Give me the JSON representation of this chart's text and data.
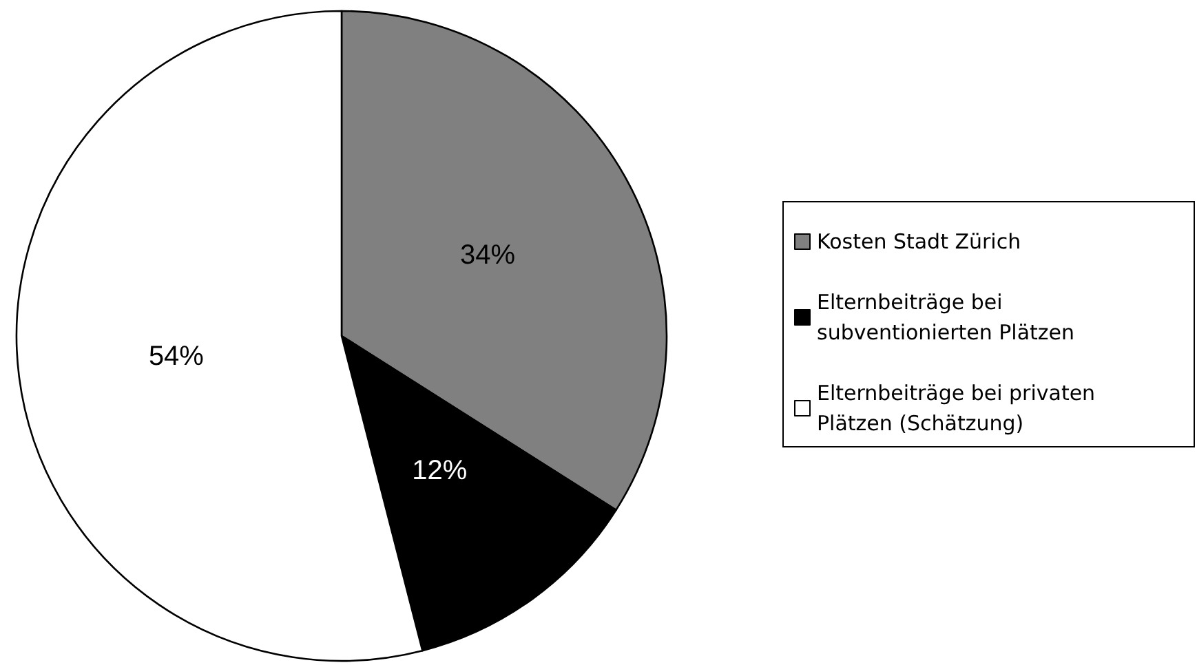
{
  "chart_data": {
    "type": "pie",
    "categories": [
      "Kosten Stadt Zürich",
      "Elternbeiträge bei subventionierten Plätzen",
      "Elternbeiträge bei privaten Plätzen (Schätzung)"
    ],
    "values": [
      34,
      12,
      54
    ],
    "colors": [
      "#808080",
      "#000000",
      "#ffffff"
    ],
    "value_labels": [
      "34%",
      "12%",
      "54%"
    ],
    "legend": "right"
  }
}
